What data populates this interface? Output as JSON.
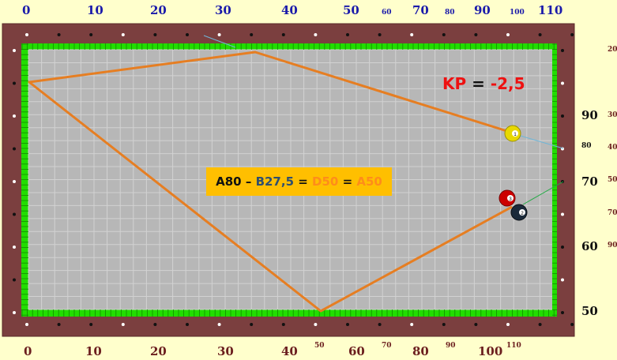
{
  "colors": {
    "background": "#ffffcc",
    "rail": "#7b3f3f",
    "cushion": "#22dd00",
    "cloth": "#b7b7b7",
    "grid": "#d0d0d0",
    "path": "#e67e22",
    "formula_box": "#ffbf00",
    "kp_red": "#ee1111"
  },
  "top_labels": [
    {
      "text": "0",
      "size": "big"
    },
    {
      "text": "10",
      "size": "big"
    },
    {
      "text": "20",
      "size": "big"
    },
    {
      "text": "30",
      "size": "big"
    },
    {
      "text": "40",
      "size": "big"
    },
    {
      "text": "50",
      "size": "big"
    },
    {
      "text": "60",
      "size": "small"
    },
    {
      "text": "70",
      "size": "big"
    },
    {
      "text": "80",
      "size": "small"
    },
    {
      "text": "90",
      "size": "big"
    },
    {
      "text": "100",
      "size": "small"
    },
    {
      "text": "110",
      "size": "big"
    }
  ],
  "bottom_labels": [
    {
      "text": "0",
      "size": "big"
    },
    {
      "text": "10",
      "size": "big"
    },
    {
      "text": "20",
      "size": "big"
    },
    {
      "text": "30",
      "size": "big"
    },
    {
      "text": "40",
      "size": "big"
    },
    {
      "text": "50",
      "size": "small"
    },
    {
      "text": "60",
      "size": "big"
    },
    {
      "text": "70",
      "size": "small"
    },
    {
      "text": "80",
      "size": "big"
    },
    {
      "text": "90",
      "size": "small"
    },
    {
      "text": "100",
      "size": "big"
    },
    {
      "text": "110",
      "size": "small"
    }
  ],
  "right_labels": [
    {
      "text": "20",
      "size": "small"
    },
    {
      "text": "90",
      "size": "big"
    },
    {
      "text": "30",
      "size": "small"
    },
    {
      "text": "80",
      "size": "small-dark"
    },
    {
      "text": "40",
      "size": "small"
    },
    {
      "text": "70",
      "size": "big"
    },
    {
      "text": "50",
      "size": "small"
    },
    {
      "text": "70",
      "size": "small"
    },
    {
      "text": "60",
      "size": "big"
    },
    {
      "text": "90",
      "size": "small"
    },
    {
      "text": "50",
      "size": "big"
    }
  ],
  "formula": [
    {
      "text": "A80",
      "color": "#111111"
    },
    {
      "text": " – ",
      "color": "#111111"
    },
    {
      "text": "B27,5",
      "color": "#2f4f6f"
    },
    {
      "text": " = ",
      "color": "#111111"
    },
    {
      "text": "D50",
      "color": "#ff8c1a"
    },
    {
      "text": " = ",
      "color": "#111111"
    },
    {
      "text": "A50",
      "color": "#ff8c1a"
    }
  ],
  "kp": {
    "label": "KP",
    "equals": " = ",
    "value": "-2,5"
  },
  "balls": [
    {
      "number": "1",
      "color": "#e8d800"
    },
    {
      "number": "3",
      "color": "#cc0000"
    },
    {
      "number": "2",
      "color": "#1a2a3a"
    }
  ]
}
